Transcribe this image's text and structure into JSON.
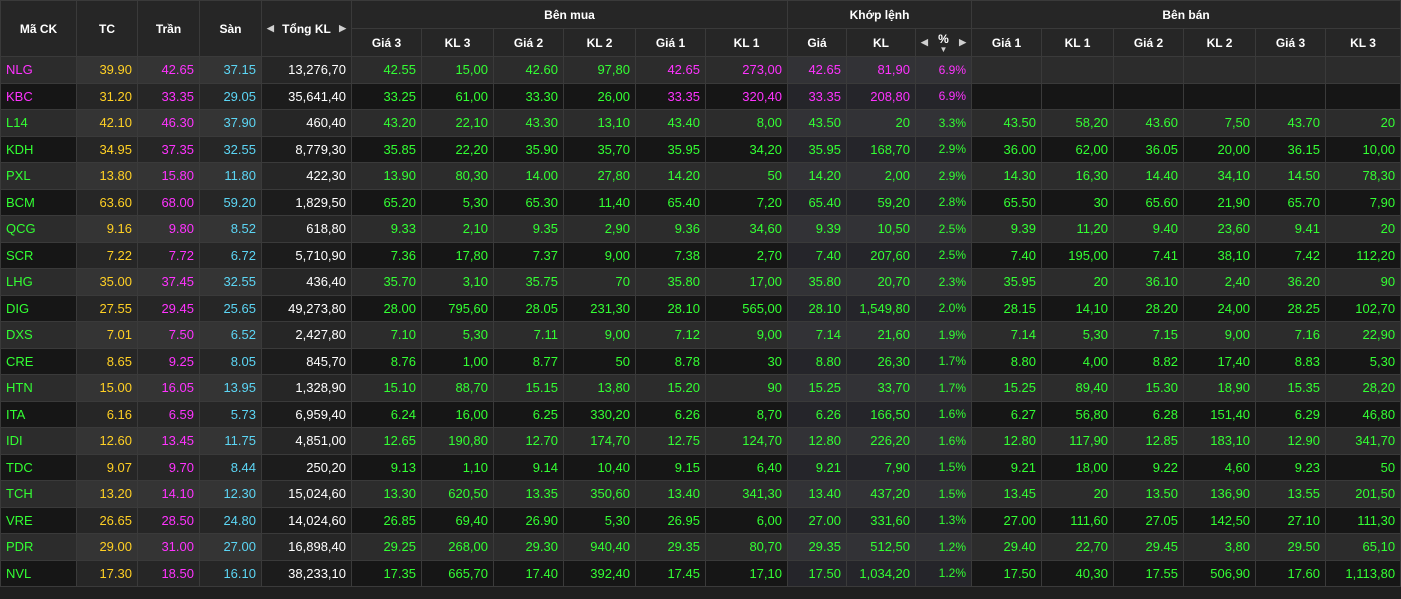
{
  "colors": {
    "up": "#33ff33",
    "ceiling": "#ff33ff",
    "reference": "#ffd024",
    "floor": "#5cd6f5",
    "white": "#ffffff"
  },
  "header": {
    "symbol": "Mã CK",
    "ref": "TC",
    "ceil": "Trần",
    "floor": "Sàn",
    "total_vol": "Tổng KL",
    "buy_group": "Bên mua",
    "match_group": "Khớp lệnh",
    "sell_group": "Bên bán",
    "buy_cols": [
      "Giá 3",
      "KL 3",
      "Giá 2",
      "KL 2",
      "Giá 1",
      "KL 1"
    ],
    "match_cols": [
      "Giá",
      "KL",
      "%"
    ],
    "sell_cols": [
      "Giá 1",
      "KL 1",
      "Giá 2",
      "KL 2",
      "Giá 3",
      "KL 3"
    ],
    "left_arrow_icon": "◀",
    "right_arrow_icon": "▶",
    "sort_desc_icon": "▼"
  },
  "rows": [
    {
      "sym": "NLG",
      "sym_color": "ceiling",
      "tc": "39.90",
      "tran": "42.65",
      "san": "37.15",
      "tkl": "13,276,70",
      "buy": [
        "42.55",
        "15,00",
        "42.60",
        "97,80",
        "42.65",
        "273,00"
      ],
      "buy_colors": [
        "up",
        "up",
        "up",
        "up",
        "ceiling",
        "ceiling"
      ],
      "match": [
        "42.65",
        "81,90",
        "6.9%"
      ],
      "match_color": "ceiling",
      "sell": [
        "",
        "",
        "",
        "",
        "",
        ""
      ],
      "sell_colors": [
        "up",
        "up",
        "up",
        "up",
        "up",
        "up"
      ]
    },
    {
      "sym": "KBC",
      "sym_color": "ceiling",
      "tc": "31.20",
      "tran": "33.35",
      "san": "29.05",
      "tkl": "35,641,40",
      "buy": [
        "33.25",
        "61,00",
        "33.30",
        "26,00",
        "33.35",
        "320,40"
      ],
      "buy_colors": [
        "up",
        "up",
        "up",
        "up",
        "ceiling",
        "ceiling"
      ],
      "match": [
        "33.35",
        "208,80",
        "6.9%"
      ],
      "match_color": "ceiling",
      "sell": [
        "",
        "",
        "",
        "",
        "",
        ""
      ],
      "sell_colors": [
        "up",
        "up",
        "up",
        "up",
        "up",
        "up"
      ]
    },
    {
      "sym": "L14",
      "sym_color": "up",
      "tc": "42.10",
      "tran": "46.30",
      "san": "37.90",
      "tkl": "460,40",
      "buy": [
        "43.20",
        "22,10",
        "43.30",
        "13,10",
        "43.40",
        "8,00"
      ],
      "buy_colors": [
        "up",
        "up",
        "up",
        "up",
        "up",
        "up"
      ],
      "match": [
        "43.50",
        "20",
        "3.3%"
      ],
      "match_color": "up",
      "sell": [
        "43.50",
        "58,20",
        "43.60",
        "7,50",
        "43.70",
        "20"
      ],
      "sell_colors": [
        "up",
        "up",
        "up",
        "up",
        "up",
        "up"
      ]
    },
    {
      "sym": "KDH",
      "sym_color": "up",
      "tc": "34.95",
      "tran": "37.35",
      "san": "32.55",
      "tkl": "8,779,30",
      "buy": [
        "35.85",
        "22,20",
        "35.90",
        "35,70",
        "35.95",
        "34,20"
      ],
      "buy_colors": [
        "up",
        "up",
        "up",
        "up",
        "up",
        "up"
      ],
      "match": [
        "35.95",
        "168,70",
        "2.9%"
      ],
      "match_color": "up",
      "sell": [
        "36.00",
        "62,00",
        "36.05",
        "20,00",
        "36.15",
        "10,00"
      ],
      "sell_colors": [
        "up",
        "up",
        "up",
        "up",
        "up",
        "up"
      ]
    },
    {
      "sym": "PXL",
      "sym_color": "up",
      "tc": "13.80",
      "tran": "15.80",
      "san": "11.80",
      "tkl": "422,30",
      "buy": [
        "13.90",
        "80,30",
        "14.00",
        "27,80",
        "14.20",
        "50"
      ],
      "buy_colors": [
        "up",
        "up",
        "up",
        "up",
        "up",
        "up"
      ],
      "match": [
        "14.20",
        "2,00",
        "2.9%"
      ],
      "match_color": "up",
      "sell": [
        "14.30",
        "16,30",
        "14.40",
        "34,10",
        "14.50",
        "78,30"
      ],
      "sell_colors": [
        "up",
        "up",
        "up",
        "up",
        "up",
        "up"
      ]
    },
    {
      "sym": "BCM",
      "sym_color": "up",
      "tc": "63.60",
      "tran": "68.00",
      "san": "59.20",
      "tkl": "1,829,50",
      "buy": [
        "65.20",
        "5,30",
        "65.30",
        "11,40",
        "65.40",
        "7,20"
      ],
      "buy_colors": [
        "up",
        "up",
        "up",
        "up",
        "up",
        "up"
      ],
      "match": [
        "65.40",
        "59,20",
        "2.8%"
      ],
      "match_color": "up",
      "sell": [
        "65.50",
        "30",
        "65.60",
        "21,90",
        "65.70",
        "7,90"
      ],
      "sell_colors": [
        "up",
        "up",
        "up",
        "up",
        "up",
        "up"
      ]
    },
    {
      "sym": "QCG",
      "sym_color": "up",
      "tc": "9.16",
      "tran": "9.80",
      "san": "8.52",
      "tkl": "618,80",
      "buy": [
        "9.33",
        "2,10",
        "9.35",
        "2,90",
        "9.36",
        "34,60"
      ],
      "buy_colors": [
        "up",
        "up",
        "up",
        "up",
        "up",
        "up"
      ],
      "match": [
        "9.39",
        "10,50",
        "2.5%"
      ],
      "match_color": "up",
      "sell": [
        "9.39",
        "11,20",
        "9.40",
        "23,60",
        "9.41",
        "20"
      ],
      "sell_colors": [
        "up",
        "up",
        "up",
        "up",
        "up",
        "up"
      ]
    },
    {
      "sym": "SCR",
      "sym_color": "up",
      "tc": "7.22",
      "tran": "7.72",
      "san": "6.72",
      "tkl": "5,710,90",
      "buy": [
        "7.36",
        "17,80",
        "7.37",
        "9,00",
        "7.38",
        "2,70"
      ],
      "buy_colors": [
        "up",
        "up",
        "up",
        "up",
        "up",
        "up"
      ],
      "match": [
        "7.40",
        "207,60",
        "2.5%"
      ],
      "match_color": "up",
      "sell": [
        "7.40",
        "195,00",
        "7.41",
        "38,10",
        "7.42",
        "112,20"
      ],
      "sell_colors": [
        "up",
        "up",
        "up",
        "up",
        "up",
        "up"
      ]
    },
    {
      "sym": "LHG",
      "sym_color": "up",
      "tc": "35.00",
      "tran": "37.45",
      "san": "32.55",
      "tkl": "436,40",
      "buy": [
        "35.70",
        "3,10",
        "35.75",
        "70",
        "35.80",
        "17,00"
      ],
      "buy_colors": [
        "up",
        "up",
        "up",
        "up",
        "up",
        "up"
      ],
      "match": [
        "35.80",
        "20,70",
        "2.3%"
      ],
      "match_color": "up",
      "sell": [
        "35.95",
        "20",
        "36.10",
        "2,40",
        "36.20",
        "90"
      ],
      "sell_colors": [
        "up",
        "up",
        "up",
        "up",
        "up",
        "up"
      ]
    },
    {
      "sym": "DIG",
      "sym_color": "up",
      "tc": "27.55",
      "tran": "29.45",
      "san": "25.65",
      "tkl": "49,273,80",
      "buy": [
        "28.00",
        "795,60",
        "28.05",
        "231,30",
        "28.10",
        "565,00"
      ],
      "buy_colors": [
        "up",
        "up",
        "up",
        "up",
        "up",
        "up"
      ],
      "match": [
        "28.10",
        "1,549,80",
        "2.0%"
      ],
      "match_color": "up",
      "sell": [
        "28.15",
        "14,10",
        "28.20",
        "24,00",
        "28.25",
        "102,70"
      ],
      "sell_colors": [
        "up",
        "up",
        "up",
        "up",
        "up",
        "up"
      ]
    },
    {
      "sym": "DXS",
      "sym_color": "up",
      "tc": "7.01",
      "tran": "7.50",
      "san": "6.52",
      "tkl": "2,427,80",
      "buy": [
        "7.10",
        "5,30",
        "7.11",
        "9,00",
        "7.12",
        "9,00"
      ],
      "buy_colors": [
        "up",
        "up",
        "up",
        "up",
        "up",
        "up"
      ],
      "match": [
        "7.14",
        "21,60",
        "1.9%"
      ],
      "match_color": "up",
      "sell": [
        "7.14",
        "5,30",
        "7.15",
        "9,00",
        "7.16",
        "22,90"
      ],
      "sell_colors": [
        "up",
        "up",
        "up",
        "up",
        "up",
        "up"
      ]
    },
    {
      "sym": "CRE",
      "sym_color": "up",
      "tc": "8.65",
      "tran": "9.25",
      "san": "8.05",
      "tkl": "845,70",
      "buy": [
        "8.76",
        "1,00",
        "8.77",
        "50",
        "8.78",
        "30"
      ],
      "buy_colors": [
        "up",
        "up",
        "up",
        "up",
        "up",
        "up"
      ],
      "match": [
        "8.80",
        "26,30",
        "1.7%"
      ],
      "match_color": "up",
      "sell": [
        "8.80",
        "4,00",
        "8.82",
        "17,40",
        "8.83",
        "5,30"
      ],
      "sell_colors": [
        "up",
        "up",
        "up",
        "up",
        "up",
        "up"
      ]
    },
    {
      "sym": "HTN",
      "sym_color": "up",
      "tc": "15.00",
      "tran": "16.05",
      "san": "13.95",
      "tkl": "1,328,90",
      "buy": [
        "15.10",
        "88,70",
        "15.15",
        "13,80",
        "15.20",
        "90"
      ],
      "buy_colors": [
        "up",
        "up",
        "up",
        "up",
        "up",
        "up"
      ],
      "match": [
        "15.25",
        "33,70",
        "1.7%"
      ],
      "match_color": "up",
      "sell": [
        "15.25",
        "89,40",
        "15.30",
        "18,90",
        "15.35",
        "28,20"
      ],
      "sell_colors": [
        "up",
        "up",
        "up",
        "up",
        "up",
        "up"
      ]
    },
    {
      "sym": "ITA",
      "sym_color": "up",
      "tc": "6.16",
      "tran": "6.59",
      "san": "5.73",
      "tkl": "6,959,40",
      "buy": [
        "6.24",
        "16,00",
        "6.25",
        "330,20",
        "6.26",
        "8,70"
      ],
      "buy_colors": [
        "up",
        "up",
        "up",
        "up",
        "up",
        "up"
      ],
      "match": [
        "6.26",
        "166,50",
        "1.6%"
      ],
      "match_color": "up",
      "sell": [
        "6.27",
        "56,80",
        "6.28",
        "151,40",
        "6.29",
        "46,80"
      ],
      "sell_colors": [
        "up",
        "up",
        "up",
        "up",
        "up",
        "up"
      ]
    },
    {
      "sym": "IDI",
      "sym_color": "up",
      "tc": "12.60",
      "tran": "13.45",
      "san": "11.75",
      "tkl": "4,851,00",
      "buy": [
        "12.65",
        "190,80",
        "12.70",
        "174,70",
        "12.75",
        "124,70"
      ],
      "buy_colors": [
        "up",
        "up",
        "up",
        "up",
        "up",
        "up"
      ],
      "match": [
        "12.80",
        "226,20",
        "1.6%"
      ],
      "match_color": "up",
      "sell": [
        "12.80",
        "117,90",
        "12.85",
        "183,10",
        "12.90",
        "341,70"
      ],
      "sell_colors": [
        "up",
        "up",
        "up",
        "up",
        "up",
        "up"
      ]
    },
    {
      "sym": "TDC",
      "sym_color": "up",
      "tc": "9.07",
      "tran": "9.70",
      "san": "8.44",
      "tkl": "250,20",
      "buy": [
        "9.13",
        "1,10",
        "9.14",
        "10,40",
        "9.15",
        "6,40"
      ],
      "buy_colors": [
        "up",
        "up",
        "up",
        "up",
        "up",
        "up"
      ],
      "match": [
        "9.21",
        "7,90",
        "1.5%"
      ],
      "match_color": "up",
      "sell": [
        "9.21",
        "18,00",
        "9.22",
        "4,60",
        "9.23",
        "50"
      ],
      "sell_colors": [
        "up",
        "up",
        "up",
        "up",
        "up",
        "up"
      ]
    },
    {
      "sym": "TCH",
      "sym_color": "up",
      "tc": "13.20",
      "tran": "14.10",
      "san": "12.30",
      "tkl": "15,024,60",
      "buy": [
        "13.30",
        "620,50",
        "13.35",
        "350,60",
        "13.40",
        "341,30"
      ],
      "buy_colors": [
        "up",
        "up",
        "up",
        "up",
        "up",
        "up"
      ],
      "match": [
        "13.40",
        "437,20",
        "1.5%"
      ],
      "match_color": "up",
      "sell": [
        "13.45",
        "20",
        "13.50",
        "136,90",
        "13.55",
        "201,50"
      ],
      "sell_colors": [
        "up",
        "up",
        "up",
        "up",
        "up",
        "up"
      ]
    },
    {
      "sym": "VRE",
      "sym_color": "up",
      "tc": "26.65",
      "tran": "28.50",
      "san": "24.80",
      "tkl": "14,024,60",
      "buy": [
        "26.85",
        "69,40",
        "26.90",
        "5,30",
        "26.95",
        "6,00"
      ],
      "buy_colors": [
        "up",
        "up",
        "up",
        "up",
        "up",
        "up"
      ],
      "match": [
        "27.00",
        "331,60",
        "1.3%"
      ],
      "match_color": "up",
      "sell": [
        "27.00",
        "111,60",
        "27.05",
        "142,50",
        "27.10",
        "111,30"
      ],
      "sell_colors": [
        "up",
        "up",
        "up",
        "up",
        "up",
        "up"
      ]
    },
    {
      "sym": "PDR",
      "sym_color": "up",
      "tc": "29.00",
      "tran": "31.00",
      "san": "27.00",
      "tkl": "16,898,40",
      "buy": [
        "29.25",
        "268,00",
        "29.30",
        "940,40",
        "29.35",
        "80,70"
      ],
      "buy_colors": [
        "up",
        "up",
        "up",
        "up",
        "up",
        "up"
      ],
      "match": [
        "29.35",
        "512,50",
        "1.2%"
      ],
      "match_color": "up",
      "sell": [
        "29.40",
        "22,70",
        "29.45",
        "3,80",
        "29.50",
        "65,10"
      ],
      "sell_colors": [
        "up",
        "up",
        "up",
        "up",
        "up",
        "up"
      ]
    },
    {
      "sym": "NVL",
      "sym_color": "up",
      "tc": "17.30",
      "tran": "18.50",
      "san": "16.10",
      "tkl": "38,233,10",
      "buy": [
        "17.35",
        "665,70",
        "17.40",
        "392,40",
        "17.45",
        "17,10"
      ],
      "buy_colors": [
        "up",
        "up",
        "up",
        "up",
        "up",
        "up"
      ],
      "match": [
        "17.50",
        "1,034,20",
        "1.2%"
      ],
      "match_color": "up",
      "sell": [
        "17.50",
        "40,30",
        "17.55",
        "506,90",
        "17.60",
        "1,113,80"
      ],
      "sell_colors": [
        "up",
        "up",
        "up",
        "up",
        "up",
        "up"
      ]
    }
  ]
}
